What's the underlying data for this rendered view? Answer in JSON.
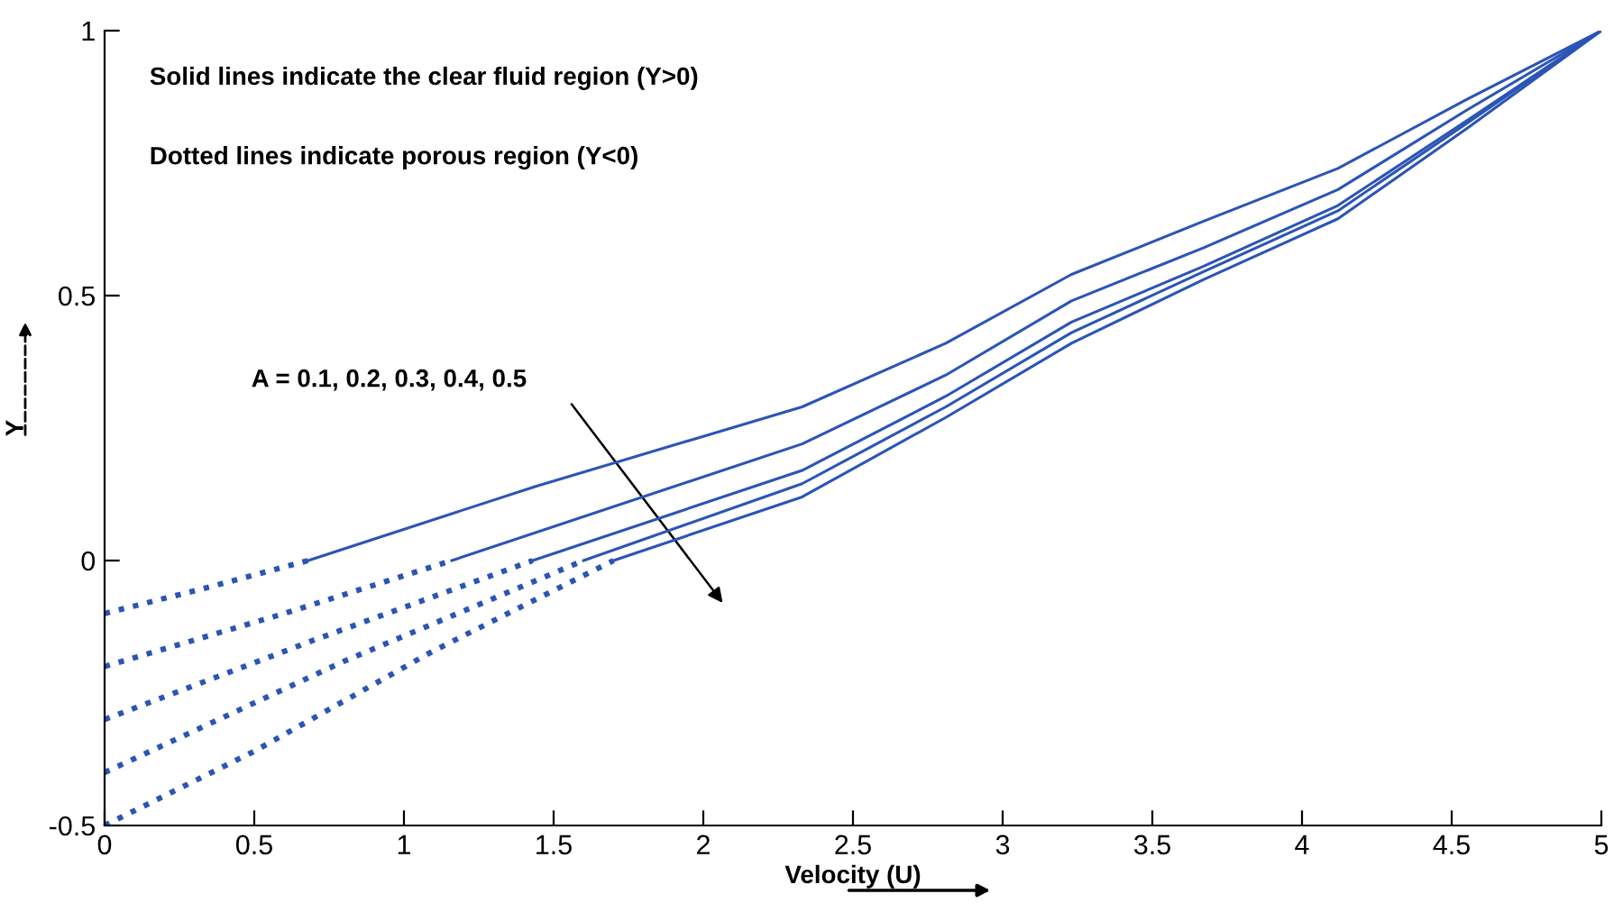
{
  "chart_data": {
    "type": "line",
    "xlabel": "Velocity (U)",
    "ylabel": "Y",
    "annotations": [
      "Solid lines indicate the clear fluid region (Y>0)",
      "Dotted lines indicate porous region (Y<0)",
      "A = 0.1, 0.2, 0.3, 0.4, 0.5"
    ],
    "series": [
      {
        "color": "#2b55b5",
        "line_style": "dotted",
        "x": [
          0,
          0.35,
          0.68
        ],
        "values": [
          -0.1,
          -0.05,
          0
        ]
      },
      {
        "color": "#2b55b5",
        "line_style": "dotted",
        "x": [
          0,
          0.6,
          1.16
        ],
        "values": [
          -0.2,
          -0.1,
          0
        ]
      },
      {
        "color": "#2b55b5",
        "line_style": "dotted",
        "x": [
          0,
          0.7,
          1.43
        ],
        "values": [
          -0.3,
          -0.15,
          0
        ]
      },
      {
        "color": "#2b55b5",
        "line_style": "dotted",
        "x": [
          0,
          0.8,
          1.6
        ],
        "values": [
          -0.4,
          -0.19,
          0
        ]
      },
      {
        "color": "#2b55b5",
        "line_style": "dotted",
        "x": [
          0,
          0.5,
          1.1,
          1.7
        ],
        "values": [
          -0.5,
          -0.36,
          -0.17,
          0
        ]
      },
      {
        "color": "#2b55b5",
        "line_style": "solid",
        "x": [
          0.68,
          1.44,
          2.33,
          2.81,
          3.23,
          3.67,
          4.12,
          4.55,
          5
        ],
        "values": [
          0,
          0.14,
          0.29,
          0.41,
          0.54,
          0.64,
          0.74,
          0.87,
          1
        ]
      },
      {
        "color": "#2b55b5",
        "line_style": "solid",
        "x": [
          1.16,
          2.33,
          2.81,
          3.23,
          3.67,
          4.12,
          4.55,
          5
        ],
        "values": [
          0,
          0.22,
          0.35,
          0.49,
          0.59,
          0.7,
          0.85,
          1
        ]
      },
      {
        "color": "#2b55b5",
        "line_style": "solid",
        "x": [
          1.43,
          2.33,
          2.81,
          3.23,
          3.67,
          4.12,
          4.55,
          5
        ],
        "values": [
          0,
          0.17,
          0.31,
          0.45,
          0.555,
          0.67,
          0.83,
          1
        ]
      },
      {
        "color": "#2b55b5",
        "line_style": "solid",
        "x": [
          1.6,
          2.33,
          2.81,
          3.23,
          3.67,
          4.12,
          4.55,
          5
        ],
        "values": [
          0,
          0.145,
          0.29,
          0.43,
          0.545,
          0.66,
          0.825,
          1
        ]
      },
      {
        "color": "#2b55b5",
        "line_style": "solid",
        "x": [
          1.7,
          2.33,
          2.81,
          3.23,
          3.67,
          4.12,
          4.55,
          5
        ],
        "values": [
          0,
          0.12,
          0.27,
          0.41,
          0.53,
          0.645,
          0.815,
          1
        ]
      }
    ],
    "xlim": [
      0,
      5
    ],
    "ylim": [
      -0.5,
      1
    ],
    "xticks": [
      0,
      0.5,
      1,
      1.5,
      2,
      2.5,
      3,
      3.5,
      4,
      4.5,
      5
    ],
    "yticks": [
      -0.5,
      0,
      0.5,
      1
    ],
    "grid": false,
    "legend": false,
    "marker": "none"
  }
}
